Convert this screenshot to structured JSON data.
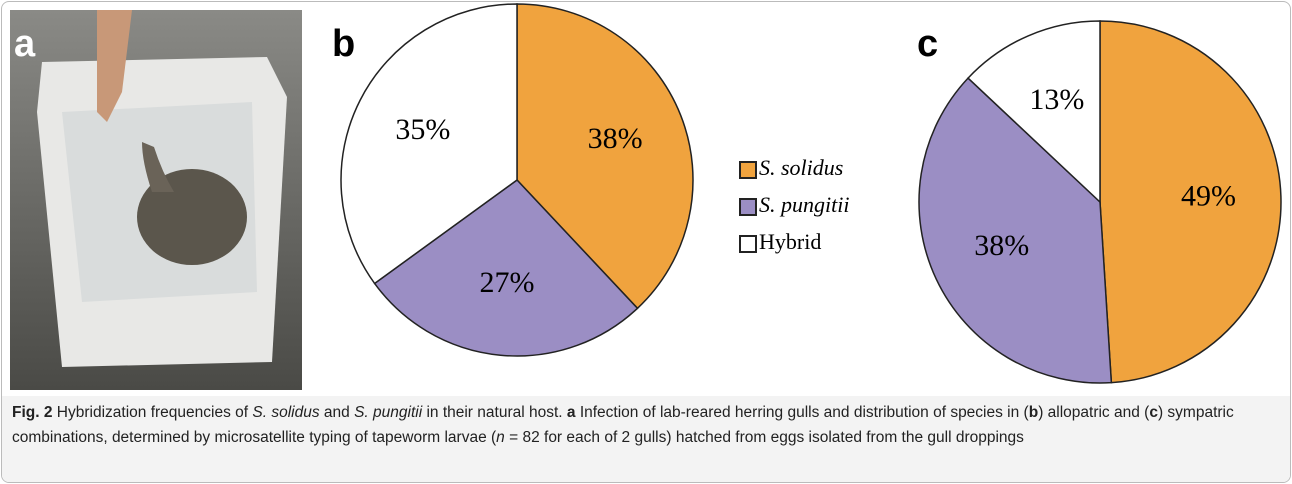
{
  "panel_a_label": "a",
  "chart_data": [
    {
      "type": "pie",
      "label": "b",
      "categories": [
        "S. solidus",
        "S. pungitii",
        "Hybrid"
      ],
      "values": [
        38,
        27,
        35
      ],
      "value_labels": [
        "38%",
        "27%",
        "35%"
      ],
      "colors": [
        "#f0a33e",
        "#9b8ec4",
        "#ffffff"
      ]
    },
    {
      "type": "pie",
      "label": "c",
      "categories": [
        "S. solidus",
        "S. pungitii",
        "Hybrid"
      ],
      "values": [
        49,
        38,
        13
      ],
      "value_labels": [
        "49%",
        "38%",
        "13%"
      ],
      "colors": [
        "#f0a33e",
        "#9b8ec4",
        "#ffffff"
      ]
    }
  ],
  "caption": [
    "Fig. 2",
    " Hybridization frequencies of ",
    "S. solidus",
    " and ",
    "S. pungitii",
    " in their natural host. ",
    "a",
    " Infection of lab-reared herring gulls and distribution of species in (",
    "b",
    ") allopatric and (",
    "c",
    ") sympatric combinations, determined by microsatellite typing of tapeworm larvae (",
    "n",
    " = 82 for each of 2 gulls) hatched from eggs isolated from the gull droppings"
  ]
}
